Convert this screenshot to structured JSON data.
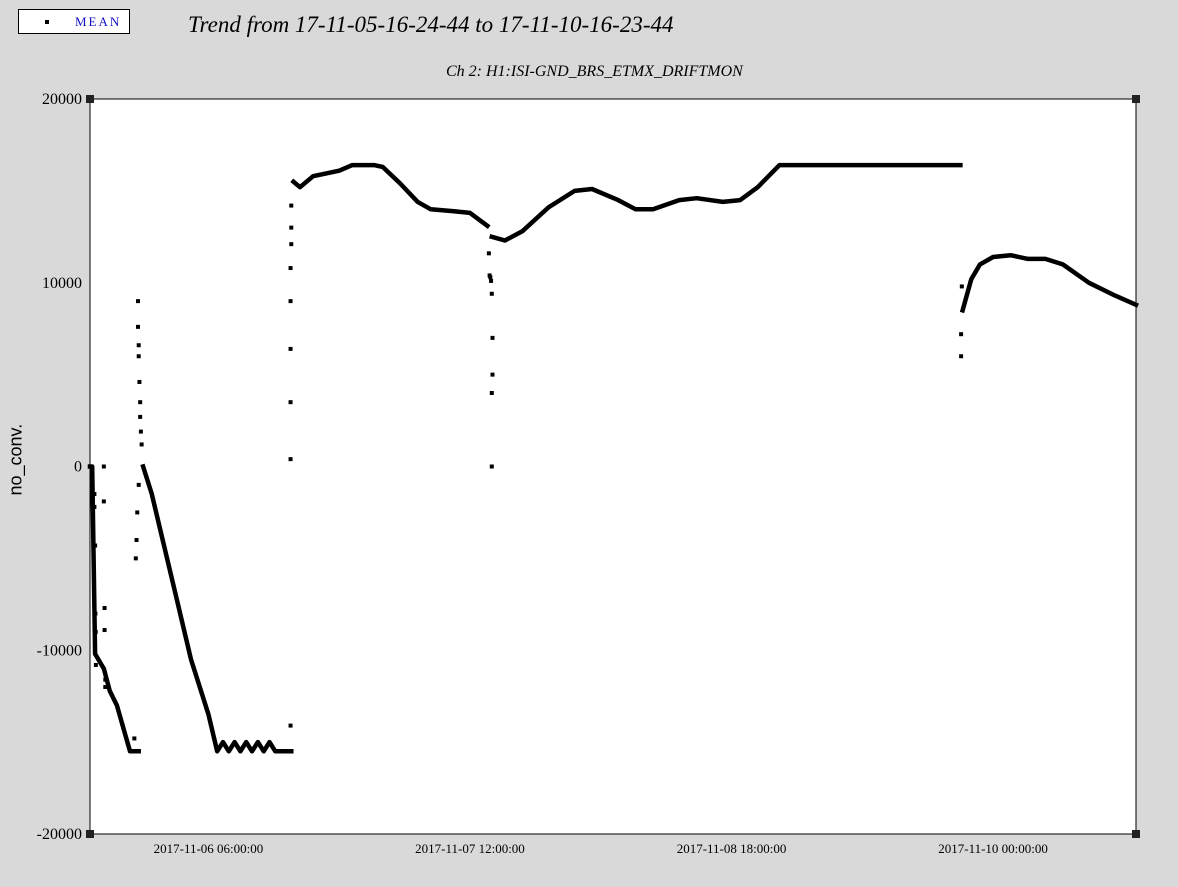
{
  "legend": {
    "label": "MEAN"
  },
  "chart_data": {
    "type": "scatter",
    "title": "Trend from 17-11-05-16-24-44 to 17-11-10-16-23-44",
    "subtitle": "Ch 2: H1:ISI-GND_BRS_ETMX_DRIFTMON",
    "xlabel": "",
    "ylabel": "no_conv.",
    "xlim": [
      "2017-11-05 16:24:44",
      "2017-11-10 16:23:44"
    ],
    "ylim": [
      -20000,
      20000
    ],
    "x_ticks": [
      "2017-11-06 06:00:00",
      "2017-11-07 12:00:00",
      "2017-11-08 18:00:00",
      "2017-11-10 00:00:00"
    ],
    "y_ticks": [
      20000,
      10000,
      0,
      -10000,
      -20000
    ],
    "y_tick_labels": [
      "20000",
      "10000",
      "0",
      "-10000",
      "-20000"
    ],
    "grid": true,
    "legend_position": "top-left",
    "series": [
      {
        "name": "MEAN",
        "color": "#000000",
        "segments": [
          [
            [
              "2017-11-05 16:24:44",
              0
            ],
            [
              "2017-11-05 16:40:00",
              0
            ],
            [
              "2017-11-05 17:00:00",
              -10200
            ],
            [
              "2017-11-05 18:00:00",
              -11000
            ],
            [
              "2017-11-05 18:40:00",
              -12200
            ],
            [
              "2017-11-05 19:30:00",
              -13000
            ],
            [
              "2017-11-05 21:00:00",
              -15500
            ],
            [
              "2017-11-05 22:00:00",
              -15500
            ]
          ],
          [
            [
              "2017-11-05 22:30:00",
              0
            ],
            [
              "2017-11-05 23:30:00",
              -1500
            ],
            [
              "2017-11-06 00:30:00",
              -3500
            ],
            [
              "2017-11-06 02:00:00",
              -6500
            ],
            [
              "2017-11-06 04:00:00",
              -10500
            ],
            [
              "2017-11-06 06:00:00",
              -13500
            ],
            [
              "2017-11-06 07:00:00",
              -15500
            ],
            [
              "2017-11-06 07:40:00",
              -15000
            ],
            [
              "2017-11-06 08:20:00",
              -15500
            ],
            [
              "2017-11-06 09:00:00",
              -15000
            ],
            [
              "2017-11-06 09:40:00",
              -15500
            ],
            [
              "2017-11-06 10:20:00",
              -15000
            ],
            [
              "2017-11-06 11:00:00",
              -15500
            ],
            [
              "2017-11-06 11:40:00",
              -15000
            ],
            [
              "2017-11-06 12:20:00",
              -15500
            ],
            [
              "2017-11-06 13:00:00",
              -15000
            ],
            [
              "2017-11-06 13:40:00",
              -15500
            ],
            [
              "2017-11-06 15:30:00",
              -15500
            ]
          ],
          [
            [
              "2017-11-06 15:45:00",
              15500
            ],
            [
              "2017-11-06 16:30:00",
              15200
            ],
            [
              "2017-11-06 18:00:00",
              15800
            ],
            [
              "2017-11-06 21:00:00",
              16100
            ],
            [
              "2017-11-06 22:30:00",
              16400
            ],
            [
              "2017-11-07 01:00:00",
              16400
            ],
            [
              "2017-11-07 02:00:00",
              16300
            ],
            [
              "2017-11-07 04:00:00",
              15400
            ],
            [
              "2017-11-07 06:00:00",
              14400
            ],
            [
              "2017-11-07 07:30:00",
              14000
            ],
            [
              "2017-11-07 10:00:00",
              13900
            ],
            [
              "2017-11-07 12:00:00",
              13800
            ],
            [
              "2017-11-07 14:00:00",
              13100
            ]
          ],
          [
            [
              "2017-11-07 14:30:00",
              12500
            ],
            [
              "2017-11-07 16:00:00",
              12300
            ],
            [
              "2017-11-07 18:00:00",
              12800
            ],
            [
              "2017-11-07 21:00:00",
              14100
            ],
            [
              "2017-11-08 00:00:00",
              15000
            ],
            [
              "2017-11-08 02:00:00",
              15100
            ],
            [
              "2017-11-08 05:00:00",
              14500
            ],
            [
              "2017-11-08 07:00:00",
              14000
            ],
            [
              "2017-11-08 09:00:00",
              14000
            ],
            [
              "2017-11-08 12:00:00",
              14500
            ],
            [
              "2017-11-08 14:00:00",
              14600
            ],
            [
              "2017-11-08 17:00:00",
              14400
            ],
            [
              "2017-11-08 19:00:00",
              14500
            ],
            [
              "2017-11-08 21:00:00",
              15200
            ],
            [
              "2017-11-08 23:30:00",
              16400
            ],
            [
              "2017-11-09 20:15:00",
              16400
            ]
          ],
          [
            [
              "2017-11-09 20:30:00",
              8500
            ],
            [
              "2017-11-09 21:30:00",
              10200
            ],
            [
              "2017-11-09 22:30:00",
              11000
            ],
            [
              "2017-11-10 00:00:00",
              11400
            ],
            [
              "2017-11-10 02:00:00",
              11500
            ],
            [
              "2017-11-10 04:00:00",
              11300
            ],
            [
              "2017-11-10 06:00:00",
              11300
            ],
            [
              "2017-11-10 08:00:00",
              11000
            ],
            [
              "2017-11-10 11:00:00",
              10000
            ],
            [
              "2017-11-10 14:00:00",
              9300
            ],
            [
              "2017-11-10 16:23:44",
              8800
            ]
          ]
        ],
        "scatter": [
          [
            "2017-11-05 16:55:00",
            -1500
          ],
          [
            "2017-11-05 16:55:00",
            -2200
          ],
          [
            "2017-11-05 17:00:00",
            -4300
          ],
          [
            "2017-11-05 17:02:00",
            -8000
          ],
          [
            "2017-11-05 17:04:00",
            -9000
          ],
          [
            "2017-11-05 17:05:00",
            -10800
          ],
          [
            "2017-11-05 18:00:00",
            0
          ],
          [
            "2017-11-05 18:00:00",
            -1900
          ],
          [
            "2017-11-05 18:05:00",
            -7700
          ],
          [
            "2017-11-05 18:05:00",
            -8900
          ],
          [
            "2017-11-05 18:10:00",
            -11600
          ],
          [
            "2017-11-05 18:10:00",
            -12000
          ],
          [
            "2017-11-05 21:30:00",
            -14800
          ],
          [
            "2017-11-05 21:40:00",
            -5000
          ],
          [
            "2017-11-05 21:45:00",
            -4000
          ],
          [
            "2017-11-05 21:50:00",
            -2500
          ],
          [
            "2017-11-05 22:00:00",
            -1000
          ],
          [
            "2017-11-05 21:55:00",
            9000
          ],
          [
            "2017-11-05 21:55:00",
            7600
          ],
          [
            "2017-11-05 22:00:00",
            6600
          ],
          [
            "2017-11-05 22:00:00",
            6000
          ],
          [
            "2017-11-05 22:05:00",
            4600
          ],
          [
            "2017-11-05 22:10:00",
            3500
          ],
          [
            "2017-11-05 22:10:00",
            2700
          ],
          [
            "2017-11-05 22:15:00",
            1900
          ],
          [
            "2017-11-05 22:20:00",
            1200
          ],
          [
            "2017-11-06 15:25:00",
            -14100
          ],
          [
            "2017-11-06 15:25:00",
            400
          ],
          [
            "2017-11-06 15:25:00",
            3500
          ],
          [
            "2017-11-06 15:25:00",
            6400
          ],
          [
            "2017-11-06 15:25:00",
            9000
          ],
          [
            "2017-11-06 15:25:00",
            10800
          ],
          [
            "2017-11-06 15:30:00",
            12100
          ],
          [
            "2017-11-06 15:30:00",
            13000
          ],
          [
            "2017-11-06 15:30:00",
            14200
          ],
          [
            "2017-11-07 14:10:00",
            11600
          ],
          [
            "2017-11-07 14:15:00",
            10400
          ],
          [
            "2017-11-07 14:20:00",
            10300
          ],
          [
            "2017-11-07 14:25:00",
            10100
          ],
          [
            "2017-11-07 14:30:00",
            9400
          ],
          [
            "2017-11-07 14:35:00",
            7000
          ],
          [
            "2017-11-07 14:35:00",
            5000
          ],
          [
            "2017-11-07 14:30:00",
            4000
          ],
          [
            "2017-11-07 14:30:00",
            0
          ],
          [
            "2017-11-09 20:20:00",
            6000
          ],
          [
            "2017-11-09 20:20:00",
            7200
          ],
          [
            "2017-11-09 20:25:00",
            9800
          ]
        ]
      }
    ]
  }
}
